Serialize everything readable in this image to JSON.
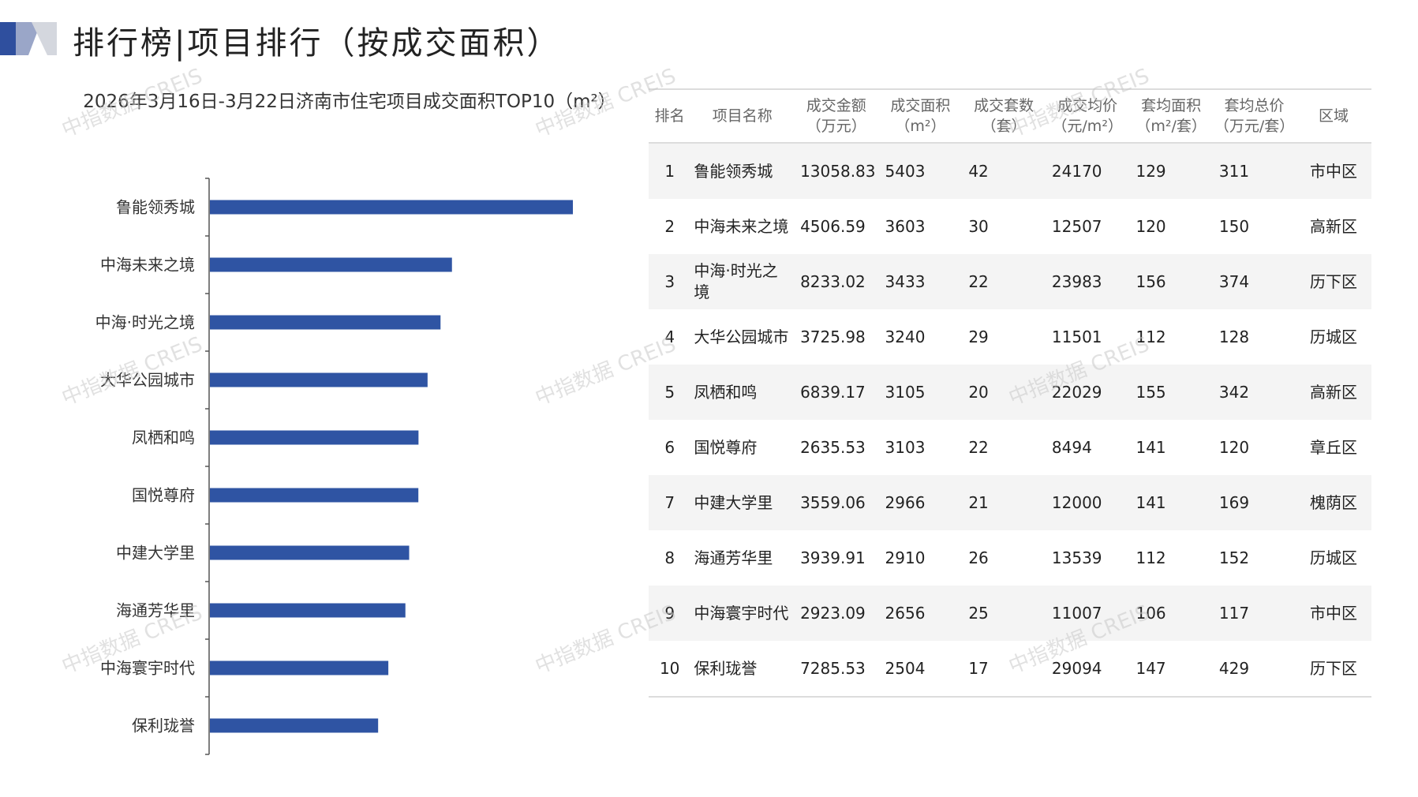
{
  "page_title": "排行榜|项目排行（按成交面积）",
  "watermark": "中指数据 CREIS",
  "chart_data": {
    "type": "bar",
    "orientation": "horizontal",
    "title": "2026年3月16日-3月22日济南市住宅项目成交面积TOP10（m²）",
    "categories": [
      "鲁能领秀城",
      "中海未来之境",
      "中海·时光之境",
      "大华公园城市",
      "凤栖和鸣",
      "国悦尊府",
      "中建大学里",
      "海通芳华里",
      "中海寰宇时代",
      "保利珑誉"
    ],
    "values": [
      5403,
      3603,
      3433,
      3240,
      3105,
      3103,
      2966,
      2910,
      2656,
      2504
    ],
    "bar_color": "#2f54a3",
    "xlim": [
      0,
      6000
    ]
  },
  "table": {
    "headers": [
      {
        "l1": "排名",
        "l2": ""
      },
      {
        "l1": "项目名称",
        "l2": ""
      },
      {
        "l1": "成交金额",
        "l2": "（万元）"
      },
      {
        "l1": "成交面积",
        "l2": "（m²）"
      },
      {
        "l1": "成交套数",
        "l2": "（套）"
      },
      {
        "l1": "成交均价",
        "l2": "（元/m²）"
      },
      {
        "l1": "套均面积",
        "l2": "（m²/套）"
      },
      {
        "l1": "套均总价",
        "l2": "（万元/套）"
      },
      {
        "l1": "区域",
        "l2": ""
      }
    ],
    "rows": [
      {
        "rank": "1",
        "name": "鲁能领秀城",
        "amount": "13058.83",
        "area": "5403",
        "units": "42",
        "price": "24170",
        "avg_area": "129",
        "avg_total": "311",
        "district": "市中区"
      },
      {
        "rank": "2",
        "name": "中海未来之境",
        "amount": "4506.59",
        "area": "3603",
        "units": "30",
        "price": "12507",
        "avg_area": "120",
        "avg_total": "150",
        "district": "高新区"
      },
      {
        "rank": "3",
        "name": "中海·时光之境",
        "amount": "8233.02",
        "area": "3433",
        "units": "22",
        "price": "23983",
        "avg_area": "156",
        "avg_total": "374",
        "district": "历下区"
      },
      {
        "rank": "4",
        "name": "大华公园城市",
        "amount": "3725.98",
        "area": "3240",
        "units": "29",
        "price": "11501",
        "avg_area": "112",
        "avg_total": "128",
        "district": "历城区"
      },
      {
        "rank": "5",
        "name": "凤栖和鸣",
        "amount": "6839.17",
        "area": "3105",
        "units": "20",
        "price": "22029",
        "avg_area": "155",
        "avg_total": "342",
        "district": "高新区"
      },
      {
        "rank": "6",
        "name": "国悦尊府",
        "amount": "2635.53",
        "area": "3103",
        "units": "22",
        "price": "8494",
        "avg_area": "141",
        "avg_total": "120",
        "district": "章丘区"
      },
      {
        "rank": "7",
        "name": "中建大学里",
        "amount": "3559.06",
        "area": "2966",
        "units": "21",
        "price": "12000",
        "avg_area": "141",
        "avg_total": "169",
        "district": "槐荫区"
      },
      {
        "rank": "8",
        "name": "海通芳华里",
        "amount": "3939.91",
        "area": "2910",
        "units": "26",
        "price": "13539",
        "avg_area": "112",
        "avg_total": "152",
        "district": "历城区"
      },
      {
        "rank": "9",
        "name": "中海寰宇时代",
        "amount": "2923.09",
        "area": "2656",
        "units": "25",
        "price": "11007",
        "avg_area": "106",
        "avg_total": "117",
        "district": "市中区"
      },
      {
        "rank": "10",
        "name": "保利珑誉",
        "amount": "7285.53",
        "area": "2504",
        "units": "17",
        "price": "29094",
        "avg_area": "147",
        "avg_total": "429",
        "district": "历下区"
      }
    ]
  }
}
